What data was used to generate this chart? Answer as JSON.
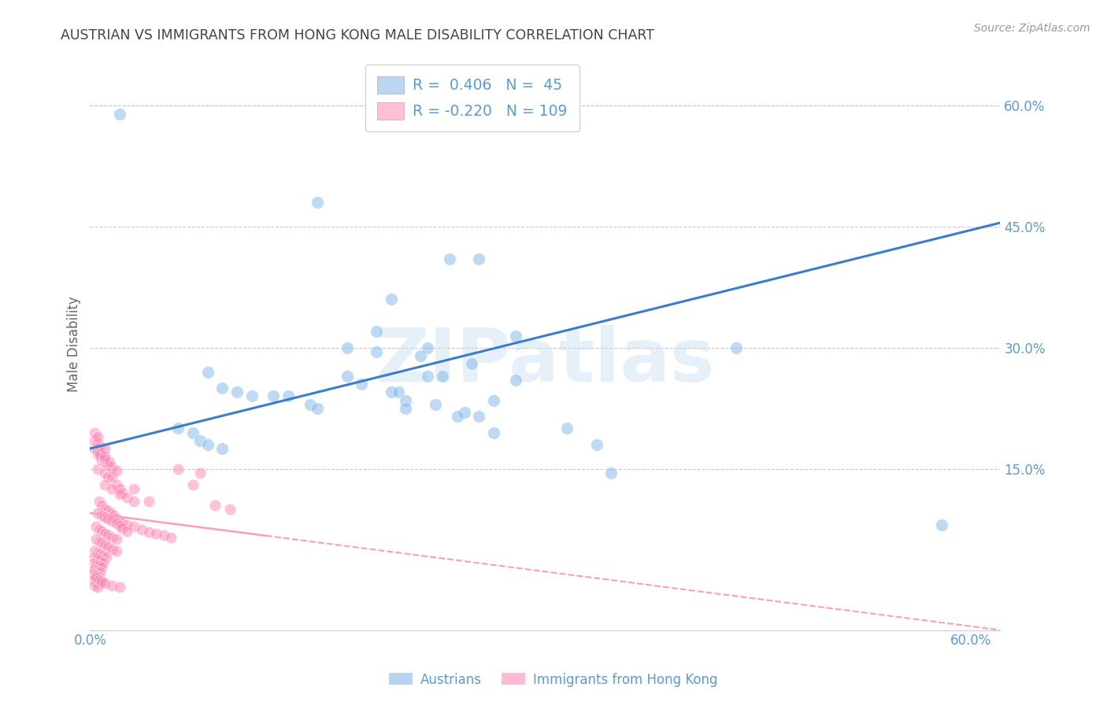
{
  "title": "AUSTRIAN VS IMMIGRANTS FROM HONG KONG MALE DISABILITY CORRELATION CHART",
  "source": "Source: ZipAtlas.com",
  "ylabel": "Male Disability",
  "xlim": [
    0.0,
    0.62
  ],
  "ylim": [
    -0.05,
    0.66
  ],
  "x_ticks": [
    0.0,
    0.6
  ],
  "x_tick_labels": [
    "0.0%",
    "60.0%"
  ],
  "y_tick_right": [
    0.15,
    0.3,
    0.45,
    0.6
  ],
  "y_tick_right_labels": [
    "15.0%",
    "30.0%",
    "45.0%",
    "60.0%"
  ],
  "background_color": "#ffffff",
  "grid_color": "#c8c8c8",
  "watermark_text": "ZIPatlas",
  "legend_R_blue": "0.406",
  "legend_N_blue": "45",
  "legend_R_pink": "-0.220",
  "legend_N_pink": "109",
  "blue_color": "#7EB6E8",
  "pink_color": "#FF85B3",
  "line_blue_color": "#3A7DC9",
  "line_pink_color": "#FF9CBB",
  "title_color": "#444444",
  "axis_label_color": "#5B9BD5",
  "tick_color": "#5B9BD5",
  "blue_scatter": [
    [
      0.02,
      0.59
    ],
    [
      0.155,
      0.48
    ],
    [
      0.245,
      0.41
    ],
    [
      0.265,
      0.41
    ],
    [
      0.205,
      0.36
    ],
    [
      0.195,
      0.32
    ],
    [
      0.23,
      0.3
    ],
    [
      0.29,
      0.315
    ],
    [
      0.225,
      0.29
    ],
    [
      0.26,
      0.28
    ],
    [
      0.175,
      0.265
    ],
    [
      0.23,
      0.265
    ],
    [
      0.24,
      0.265
    ],
    [
      0.185,
      0.255
    ],
    [
      0.29,
      0.26
    ],
    [
      0.275,
      0.235
    ],
    [
      0.205,
      0.245
    ],
    [
      0.275,
      0.195
    ],
    [
      0.325,
      0.2
    ],
    [
      0.345,
      0.18
    ],
    [
      0.355,
      0.145
    ],
    [
      0.175,
      0.3
    ],
    [
      0.195,
      0.295
    ],
    [
      0.21,
      0.245
    ],
    [
      0.215,
      0.235
    ],
    [
      0.215,
      0.225
    ],
    [
      0.235,
      0.23
    ],
    [
      0.255,
      0.22
    ],
    [
      0.25,
      0.215
    ],
    [
      0.265,
      0.215
    ],
    [
      0.08,
      0.27
    ],
    [
      0.09,
      0.25
    ],
    [
      0.1,
      0.245
    ],
    [
      0.11,
      0.24
    ],
    [
      0.125,
      0.24
    ],
    [
      0.135,
      0.24
    ],
    [
      0.15,
      0.23
    ],
    [
      0.155,
      0.225
    ],
    [
      0.06,
      0.2
    ],
    [
      0.07,
      0.195
    ],
    [
      0.075,
      0.185
    ],
    [
      0.08,
      0.18
    ],
    [
      0.09,
      0.175
    ],
    [
      0.44,
      0.3
    ],
    [
      0.58,
      0.08
    ]
  ],
  "pink_scatter": [
    [
      0.005,
      0.15
    ],
    [
      0.01,
      0.145
    ],
    [
      0.012,
      0.14
    ],
    [
      0.015,
      0.14
    ],
    [
      0.018,
      0.13
    ],
    [
      0.02,
      0.125
    ],
    [
      0.022,
      0.12
    ],
    [
      0.01,
      0.13
    ],
    [
      0.015,
      0.125
    ],
    [
      0.02,
      0.118
    ],
    [
      0.025,
      0.115
    ],
    [
      0.03,
      0.11
    ],
    [
      0.006,
      0.11
    ],
    [
      0.008,
      0.105
    ],
    [
      0.01,
      0.1
    ],
    [
      0.012,
      0.098
    ],
    [
      0.014,
      0.095
    ],
    [
      0.016,
      0.092
    ],
    [
      0.018,
      0.088
    ],
    [
      0.02,
      0.085
    ],
    [
      0.022,
      0.082
    ],
    [
      0.025,
      0.08
    ],
    [
      0.03,
      0.078
    ],
    [
      0.035,
      0.075
    ],
    [
      0.04,
      0.072
    ],
    [
      0.045,
      0.07
    ],
    [
      0.05,
      0.068
    ],
    [
      0.055,
      0.065
    ],
    [
      0.005,
      0.095
    ],
    [
      0.008,
      0.092
    ],
    [
      0.01,
      0.09
    ],
    [
      0.012,
      0.088
    ],
    [
      0.015,
      0.085
    ],
    [
      0.018,
      0.082
    ],
    [
      0.02,
      0.079
    ],
    [
      0.022,
      0.076
    ],
    [
      0.025,
      0.073
    ],
    [
      0.004,
      0.078
    ],
    [
      0.006,
      0.075
    ],
    [
      0.008,
      0.073
    ],
    [
      0.01,
      0.07
    ],
    [
      0.012,
      0.068
    ],
    [
      0.015,
      0.065
    ],
    [
      0.018,
      0.063
    ],
    [
      0.004,
      0.063
    ],
    [
      0.006,
      0.06
    ],
    [
      0.008,
      0.058
    ],
    [
      0.01,
      0.055
    ],
    [
      0.012,
      0.053
    ],
    [
      0.015,
      0.05
    ],
    [
      0.018,
      0.048
    ],
    [
      0.003,
      0.048
    ],
    [
      0.005,
      0.046
    ],
    [
      0.007,
      0.044
    ],
    [
      0.009,
      0.042
    ],
    [
      0.011,
      0.04
    ],
    [
      0.003,
      0.04
    ],
    [
      0.005,
      0.038
    ],
    [
      0.007,
      0.036
    ],
    [
      0.009,
      0.034
    ],
    [
      0.002,
      0.033
    ],
    [
      0.004,
      0.031
    ],
    [
      0.006,
      0.03
    ],
    [
      0.008,
      0.028
    ],
    [
      0.003,
      0.025
    ],
    [
      0.005,
      0.023
    ],
    [
      0.007,
      0.022
    ],
    [
      0.002,
      0.02
    ],
    [
      0.004,
      0.018
    ],
    [
      0.006,
      0.016
    ],
    [
      0.002,
      0.012
    ],
    [
      0.004,
      0.01
    ],
    [
      0.006,
      0.008
    ],
    [
      0.003,
      0.005
    ],
    [
      0.005,
      0.003
    ],
    [
      0.06,
      0.15
    ],
    [
      0.075,
      0.145
    ],
    [
      0.085,
      0.105
    ],
    [
      0.095,
      0.1
    ],
    [
      0.07,
      0.13
    ],
    [
      0.03,
      0.125
    ],
    [
      0.04,
      0.11
    ],
    [
      0.008,
      0.16
    ],
    [
      0.01,
      0.158
    ],
    [
      0.012,
      0.155
    ],
    [
      0.015,
      0.152
    ],
    [
      0.018,
      0.148
    ],
    [
      0.005,
      0.168
    ],
    [
      0.007,
      0.165
    ],
    [
      0.01,
      0.162
    ],
    [
      0.013,
      0.158
    ],
    [
      0.003,
      0.175
    ],
    [
      0.005,
      0.172
    ],
    [
      0.007,
      0.168
    ],
    [
      0.01,
      0.165
    ],
    [
      0.003,
      0.185
    ],
    [
      0.005,
      0.182
    ],
    [
      0.007,
      0.178
    ],
    [
      0.01,
      0.175
    ],
    [
      0.003,
      0.195
    ],
    [
      0.005,
      0.19
    ],
    [
      0.004,
      0.015
    ],
    [
      0.006,
      0.012
    ],
    [
      0.008,
      0.01
    ],
    [
      0.01,
      0.008
    ],
    [
      0.015,
      0.005
    ],
    [
      0.02,
      0.003
    ]
  ],
  "blue_line_x": [
    0.0,
    0.62
  ],
  "blue_line_y": [
    0.175,
    0.455
  ],
  "pink_line_x": [
    0.0,
    0.62
  ],
  "pink_line_y": [
    0.095,
    -0.05
  ]
}
